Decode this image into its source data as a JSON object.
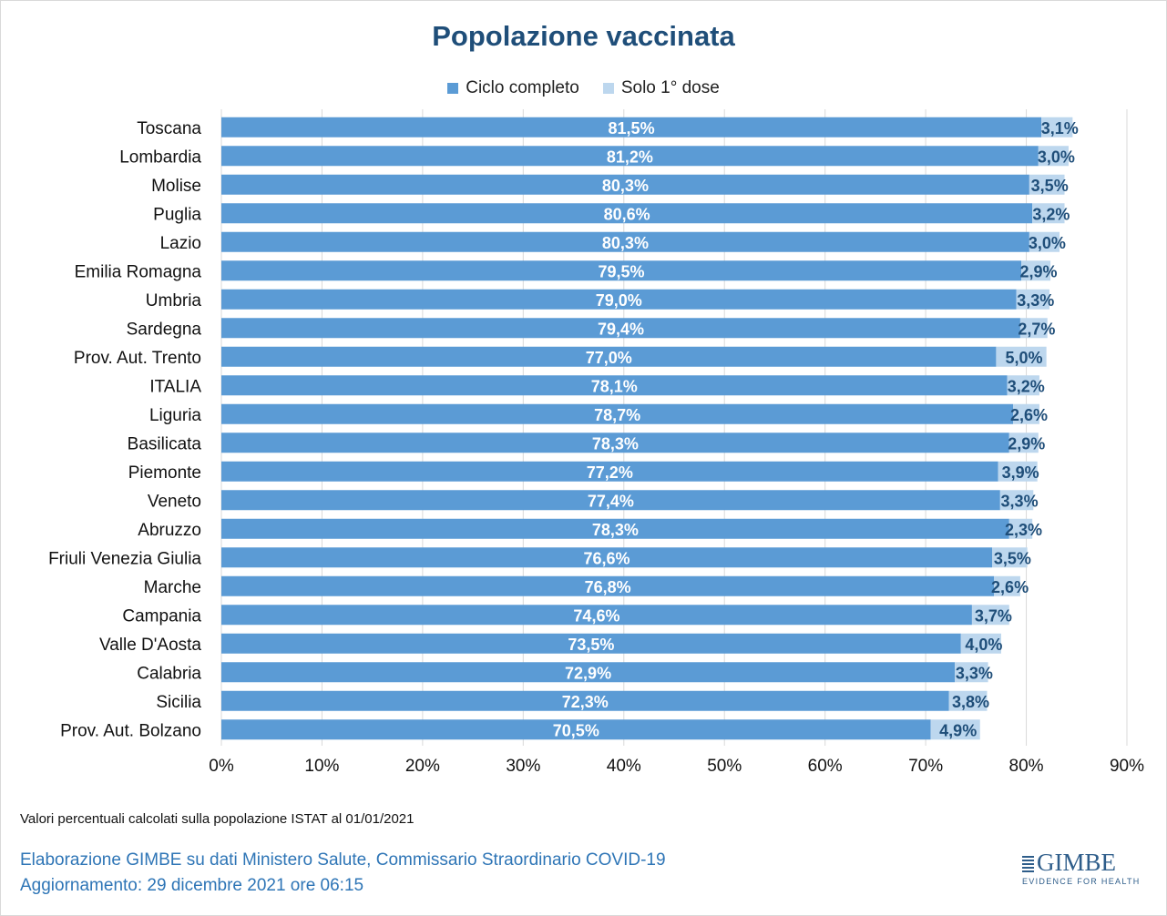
{
  "title": "Popolazione vaccinata",
  "legend": {
    "series1": "Ciclo completo",
    "series2": "Solo 1° dose"
  },
  "colors": {
    "series1": "#5b9bd5",
    "series2": "#bdd7ee",
    "label_inside": "#ffffff",
    "label_outside": "#1f4e79",
    "grid": "#d9d9d9",
    "title": "#1f4e79"
  },
  "chart_data": {
    "type": "bar",
    "orientation": "horizontal",
    "stacked": true,
    "categories": [
      "Toscana",
      "Lombardia",
      "Molise",
      "Puglia",
      "Lazio",
      "Emilia Romagna",
      "Umbria",
      "Sardegna",
      "Prov. Aut. Trento",
      "ITALIA",
      "Liguria",
      "Basilicata",
      "Piemonte",
      "Veneto",
      "Abruzzo",
      "Friuli Venezia Giulia",
      "Marche",
      "Campania",
      "Valle D'Aosta",
      "Calabria",
      "Sicilia",
      "Prov. Aut. Bolzano"
    ],
    "series": [
      {
        "name": "Ciclo completo",
        "values": [
          81.5,
          81.2,
          80.3,
          80.6,
          80.3,
          79.5,
          79.0,
          79.4,
          77.0,
          78.1,
          78.7,
          78.3,
          77.2,
          77.4,
          78.3,
          76.6,
          76.8,
          74.6,
          73.5,
          72.9,
          72.3,
          70.5
        ],
        "labels": [
          "81,5%",
          "81,2%",
          "80,3%",
          "80,6%",
          "80,3%",
          "79,5%",
          "79,0%",
          "79,4%",
          "77,0%",
          "78,1%",
          "78,7%",
          "78,3%",
          "77,2%",
          "77,4%",
          "78,3%",
          "76,6%",
          "76,8%",
          "74,6%",
          "73,5%",
          "72,9%",
          "72,3%",
          "70,5%"
        ]
      },
      {
        "name": "Solo 1° dose",
        "values": [
          3.1,
          3.0,
          3.5,
          3.2,
          3.0,
          2.9,
          3.3,
          2.7,
          5.0,
          3.2,
          2.6,
          2.9,
          3.9,
          3.3,
          2.3,
          3.5,
          2.6,
          3.7,
          4.0,
          3.3,
          3.8,
          4.9
        ],
        "labels": [
          "3,1%",
          "3,0%",
          "3,5%",
          "3,2%",
          "3,0%",
          "2,9%",
          "3,3%",
          "2,7%",
          "5,0%",
          "3,2%",
          "2,6%",
          "2,9%",
          "3,9%",
          "3,3%",
          "2,3%",
          "3,5%",
          "2,6%",
          "3,7%",
          "4,0%",
          "3,3%",
          "3,8%",
          "4,9%"
        ]
      }
    ],
    "xlim": [
      0,
      90
    ],
    "xticks": [
      0,
      10,
      20,
      30,
      40,
      50,
      60,
      70,
      80,
      90
    ],
    "xtick_labels": [
      "0%",
      "10%",
      "20%",
      "30%",
      "40%",
      "50%",
      "60%",
      "70%",
      "80%",
      "90%"
    ],
    "grid": true,
    "legend_position": "top"
  },
  "footer": {
    "note": "Valori percentuali calcolati sulla popolazione ISTAT al 01/01/2021",
    "source": "Elaborazione GIMBE su dati Ministero Salute, Commissario Straordinario COVID-19",
    "updated": "Aggiornamento: 29 dicembre 2021 ore 06:15"
  },
  "logo": {
    "name": "GIMBE",
    "tagline": "EVIDENCE FOR HEALTH"
  }
}
